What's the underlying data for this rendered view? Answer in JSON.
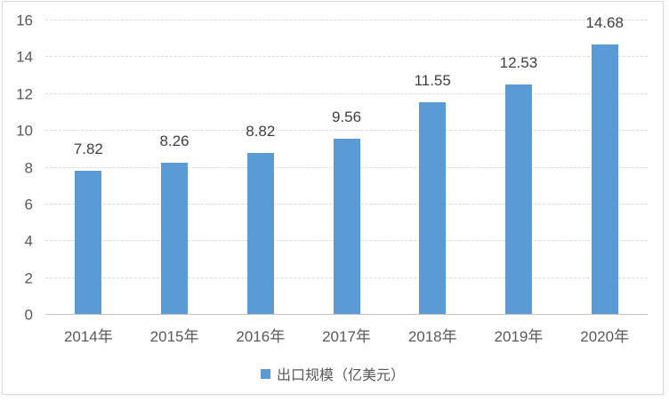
{
  "chart_data": {
    "type": "bar",
    "title": "",
    "categories": [
      "2014年",
      "2015年",
      "2016年",
      "2017年",
      "2018年",
      "2019年",
      "2020年"
    ],
    "values": [
      7.82,
      8.26,
      8.82,
      9.56,
      11.55,
      12.53,
      14.68
    ],
    "series_name": "出口规模（亿美元）",
    "xlabel": "",
    "ylabel": "",
    "ylim": [
      0,
      16
    ],
    "ytick_step": 2,
    "yticks": [
      0,
      2,
      4,
      6,
      8,
      10,
      12,
      14,
      16
    ],
    "grid": true,
    "data_labels_decimals": 2,
    "legend_position": "bottom"
  },
  "colors": {
    "bar": "#5B9BD5",
    "gridline": "#D9D9D9",
    "axis_line": "#C3C3C3",
    "tick_label": "#595959",
    "data_label": "#3F3F3F",
    "legend_text": "#595959",
    "card_border": "#D9D9D9",
    "background": "#FFFFFF"
  }
}
